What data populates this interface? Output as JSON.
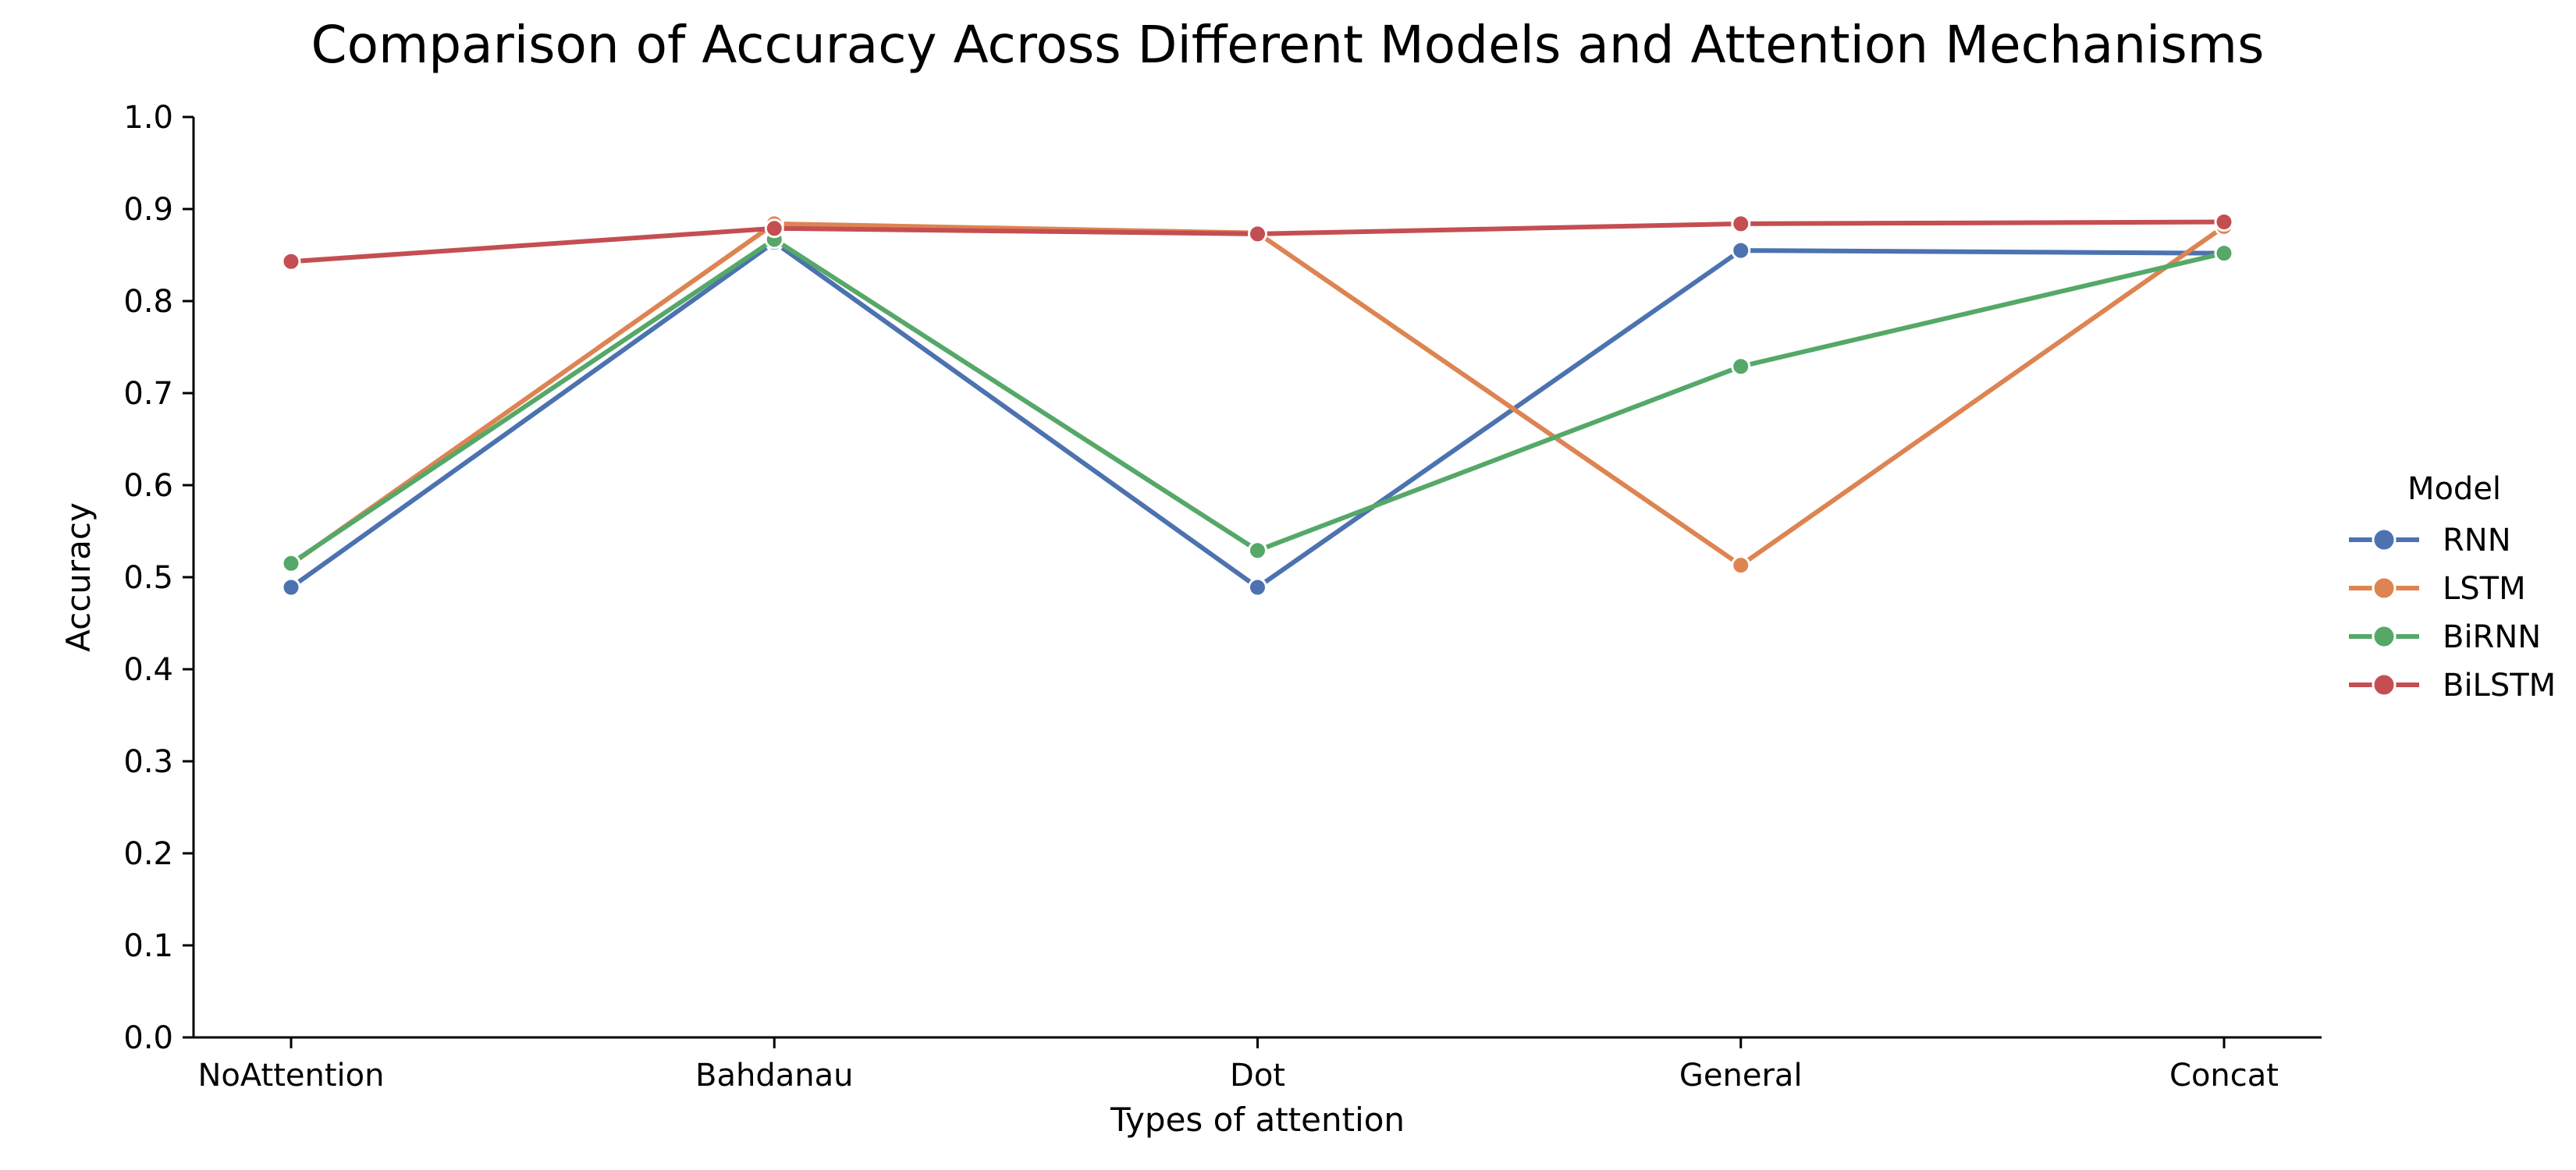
{
  "chart_data": {
    "type": "line",
    "title": "Comparison of Accuracy Across Different Models and Attention Mechanisms",
    "xlabel": "Types of attention",
    "ylabel": "Accuracy",
    "categories": [
      "NoAttention",
      "Bahdanau",
      "Dot",
      "General",
      "Concat"
    ],
    "ylim": [
      0.0,
      1.0
    ],
    "yticks": [
      0.0,
      0.1,
      0.2,
      0.3,
      0.4,
      0.5,
      0.6,
      0.7,
      0.8,
      0.9,
      1.0
    ],
    "grid": false,
    "legend": {
      "title": "Model",
      "placement": "right"
    },
    "series": [
      {
        "name": "RNN",
        "color": "#4c72b0",
        "values": [
          0.489,
          0.864,
          0.489,
          0.855,
          0.852
        ]
      },
      {
        "name": "LSTM",
        "color": "#dd8452",
        "values": [
          0.514,
          0.884,
          0.874,
          0.513,
          0.881
        ]
      },
      {
        "name": "BiRNN",
        "color": "#55a868",
        "values": [
          0.515,
          0.867,
          0.529,
          0.729,
          0.852
        ]
      },
      {
        "name": "BiLSTM",
        "color": "#c44e52",
        "values": [
          0.843,
          0.879,
          0.873,
          0.884,
          0.886
        ]
      }
    ]
  }
}
